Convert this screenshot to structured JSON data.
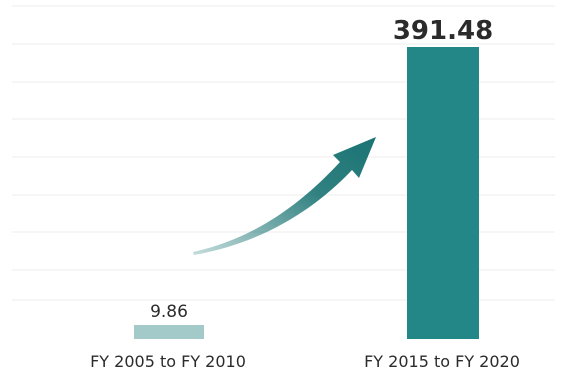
{
  "chart_data": {
    "type": "bar",
    "categories": [
      "FY 2005 to FY 2010",
      "FY 2015 to FY 2020"
    ],
    "values": [
      9.86,
      391.48
    ],
    "data_labels": [
      "9.86",
      "391.48"
    ],
    "ylim": [
      0,
      400
    ],
    "grid": true,
    "legend": "none",
    "colors": {
      "bars": [
        "#a3c9c9",
        "#238787"
      ],
      "arrow": "#1a7373",
      "grid": "#ececec",
      "text": "#2b2b2b"
    }
  }
}
